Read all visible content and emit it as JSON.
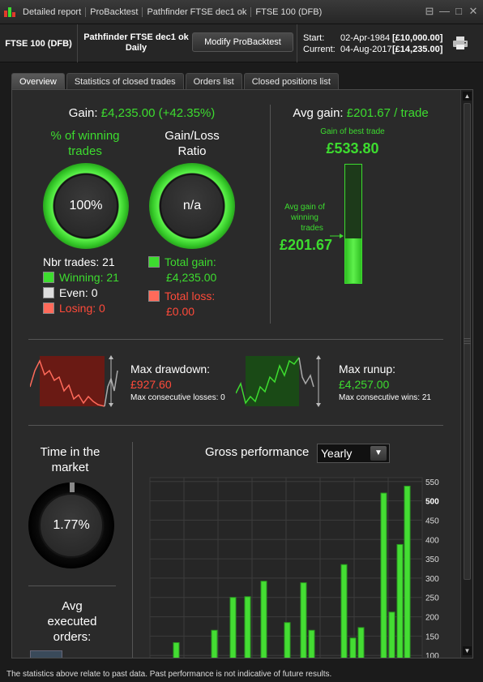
{
  "titlebar": {
    "crumbs": [
      "Detailed report",
      "ProBacktest",
      "Pathfinder FTSE dec1 ok",
      "FTSE 100 (DFB)"
    ],
    "controls": [
      "⊟",
      "—",
      "□",
      "✕"
    ]
  },
  "info": {
    "instrument": "FTSE 100 (DFB)",
    "strategy_name": "Pathfinder FTSE dec1 ok",
    "timeframe": "Daily",
    "modify_button": "Modify ProBacktest",
    "start_label": "Start:",
    "start_date": "02-Apr-1984",
    "start_amount": "[£10,000.00]",
    "current_label": "Current:",
    "current_date": "04-Aug-2017",
    "current_amount": "[£14,235.00]"
  },
  "tabs": [
    "Overview",
    "Statistics of closed trades",
    "Orders list",
    "Closed positions list"
  ],
  "gain": {
    "label": "Gain:",
    "value": "£4,235.00 (+42.35%)"
  },
  "winning": {
    "title_line1": "% of winning",
    "title_line2": "trades",
    "value": "100%",
    "percent": 100
  },
  "ratio": {
    "title_line1": "Gain/Loss",
    "title_line2": "Ratio",
    "value": "n/a"
  },
  "trades": {
    "nbr": "Nbr trades: 21",
    "winning": "Winning: 21",
    "even": "Even: 0",
    "losing": "Losing: 0"
  },
  "totals": {
    "gain_label": "Total gain:",
    "gain_value": "£4,235.00",
    "loss_label": "Total loss:",
    "loss_value": "£0.00"
  },
  "avg": {
    "label": "Avg gain:",
    "value": "£201.67 / trade",
    "best_label": "Gain of best trade",
    "best_value": "£533.80",
    "avg_win_line1": "Avg gain of",
    "avg_win_line2": "winning",
    "avg_win_line3": "trades",
    "avg_win_value": "£201.67",
    "avg_fraction": 0.378
  },
  "drawdown": {
    "label": "Max drawdown:",
    "value": "£927.60",
    "consec": "Max consecutive losses: 0"
  },
  "runup": {
    "label": "Max runup:",
    "value": "£4,257.00",
    "consec": "Max consecutive wins: 21"
  },
  "market": {
    "title_line1": "Time in the",
    "title_line2": "market",
    "value": "1.77%",
    "percent": 1.77
  },
  "orders": {
    "title_line1": "Avg",
    "title_line2": "executed",
    "title_line3": "orders:"
  },
  "perf": {
    "title": "Gross performance",
    "period": "Yearly"
  },
  "chart_data": {
    "type": "bar",
    "title": "Gross performance",
    "ylim": [
      90,
      560
    ],
    "yticks": [
      100,
      150,
      200,
      250,
      300,
      350,
      400,
      450,
      500,
      550
    ],
    "values": [
      133,
      165,
      250,
      252,
      292,
      185,
      288,
      165,
      335,
      145,
      172,
      520,
      212,
      387,
      538
    ],
    "bar_color": "#44dd33"
  },
  "footer": "The statistics above relate to past data. Past performance is not indicative of future results."
}
